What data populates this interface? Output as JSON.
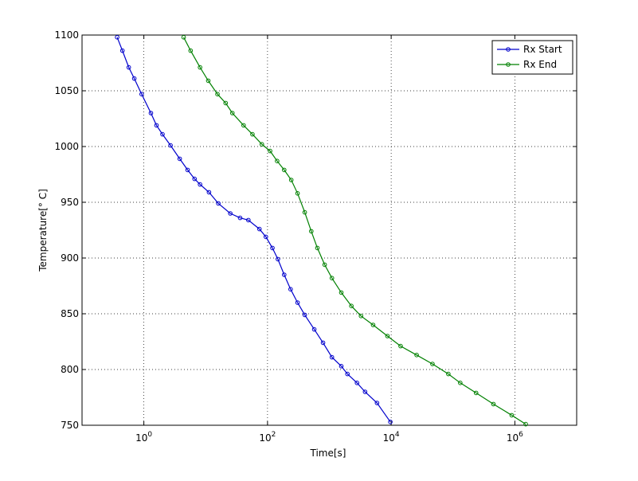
{
  "chart_data": {
    "type": "line",
    "log_x": true,
    "grid": true,
    "legend": "top-right",
    "xlabel": "Time[s]",
    "ylabel": "Temperature[° C]",
    "xlim": [
      0.1,
      10000000
    ],
    "ylim": [
      750,
      1100
    ],
    "xticks": [
      {
        "value": 1,
        "label": "10^0"
      },
      {
        "value": 100,
        "label": "10^2"
      },
      {
        "value": 10000,
        "label": "10^4"
      },
      {
        "value": 1000000,
        "label": "10^6"
      }
    ],
    "yticks": [
      750,
      800,
      850,
      900,
      950,
      1000,
      1050,
      1100
    ],
    "series": [
      {
        "name": "Rx Start",
        "color": "#0000cc",
        "x": [
          0.37,
          0.45,
          0.57,
          0.7,
          0.92,
          1.3,
          1.6,
          2.0,
          2.7,
          3.8,
          5.1,
          6.6,
          8.1,
          11.3,
          16,
          25,
          36,
          49,
          74,
          94,
          120,
          147,
          186,
          236,
          306,
          400,
          570,
          790,
          1100,
          1560,
          1960,
          2800,
          3780,
          5900,
          9700
        ],
        "values": [
          1098,
          1086,
          1071,
          1061,
          1047,
          1030,
          1019,
          1011,
          1001,
          989,
          979,
          971,
          966,
          959,
          949,
          940,
          936,
          934,
          926,
          919,
          909,
          899,
          885,
          872,
          860,
          849,
          836,
          824,
          811,
          803,
          796,
          788,
          780,
          770,
          753
        ]
      },
      {
        "name": "Rx End",
        "color": "#008000",
        "x": [
          4.4,
          5.7,
          8.1,
          11,
          15.5,
          21,
          27,
          41,
          57,
          81,
          110,
          143,
          186,
          242,
          306,
          400,
          510,
          640,
          840,
          1100,
          1560,
          2270,
          3250,
          5100,
          8700,
          14200,
          25800,
          46500,
          84000,
          131000,
          236000,
          450000,
          890000,
          1500000
        ],
        "values": [
          1098,
          1086,
          1071,
          1059,
          1047,
          1039,
          1030,
          1019,
          1011,
          1002,
          996,
          987,
          979,
          970,
          958,
          941,
          924,
          909,
          894,
          882,
          869,
          857,
          848,
          840,
          830,
          821,
          813,
          805,
          796,
          788,
          779,
          769,
          759,
          751
        ]
      }
    ]
  }
}
